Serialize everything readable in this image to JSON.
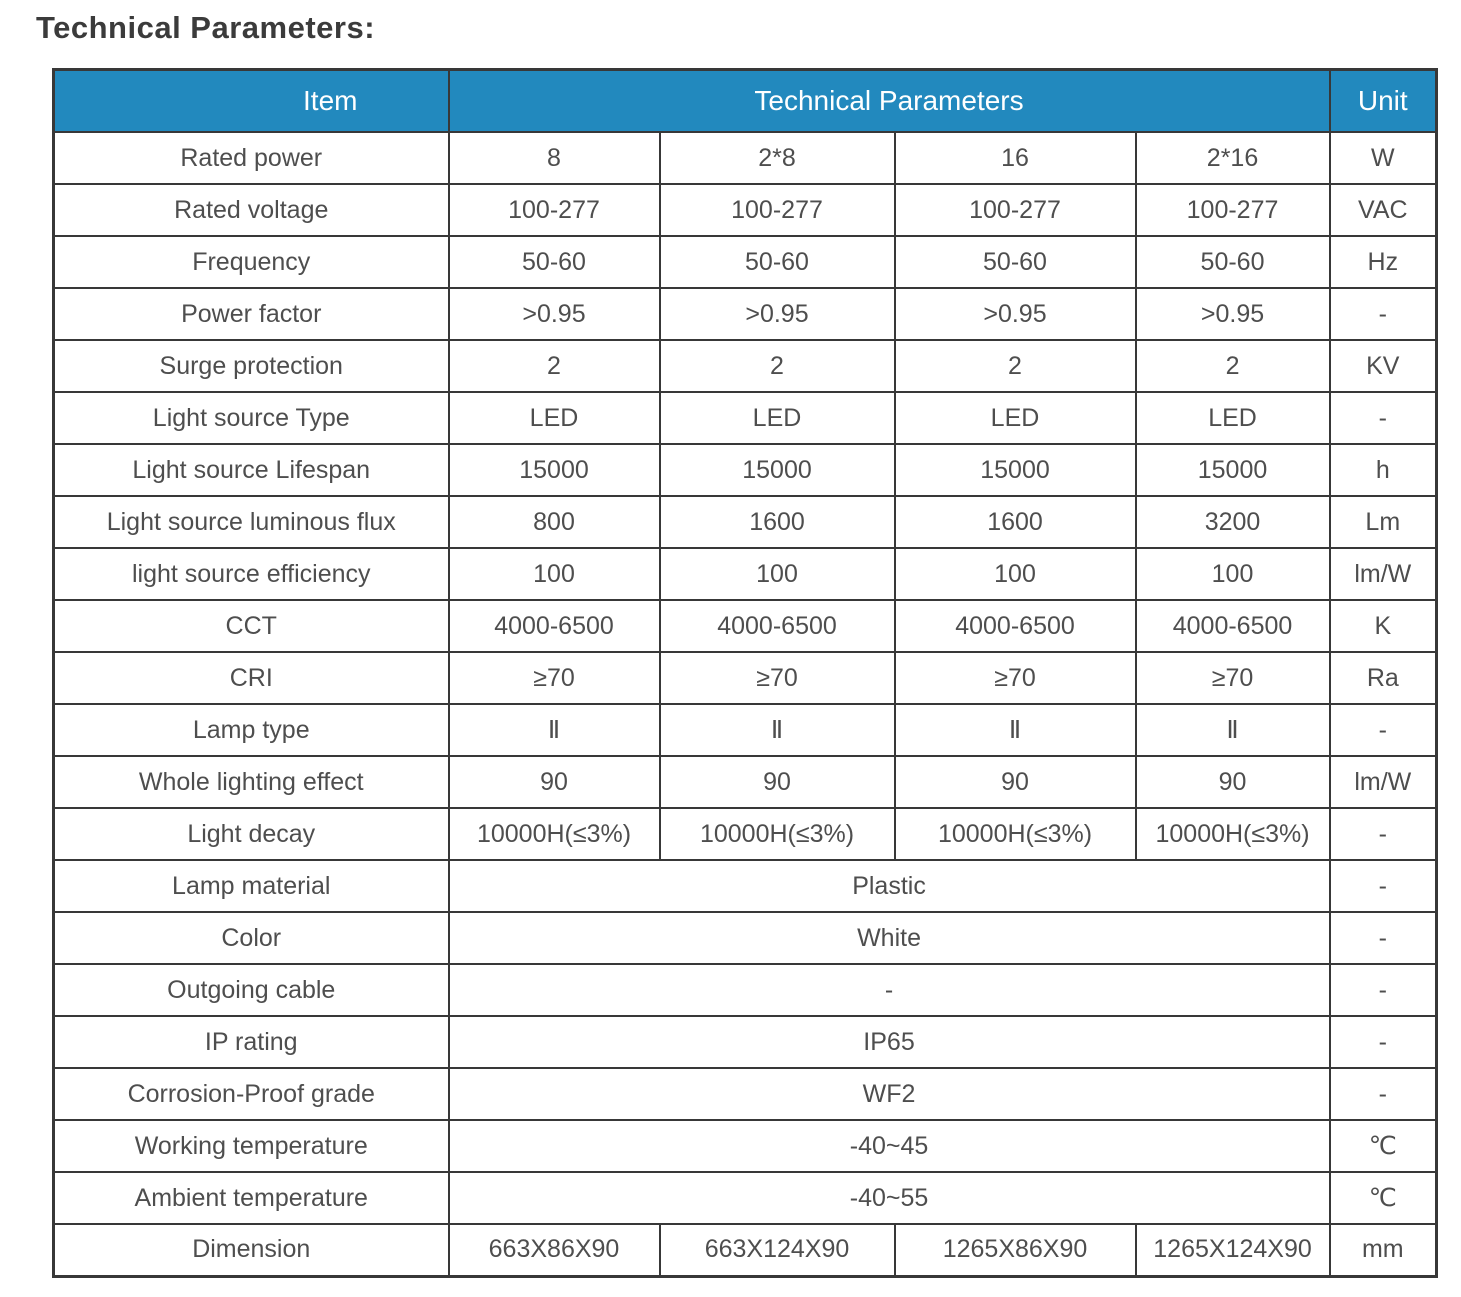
{
  "title": "Technical Parameters:",
  "colors": {
    "header_bg": "#2289be",
    "header_text": "#ffffff",
    "border": "#383838",
    "cell_text": "#4e4e4e",
    "title_text": "#3b3b3b"
  },
  "table": {
    "header": {
      "item": "Item",
      "technical_parameters": "Technical Parameters",
      "unit": "Unit"
    },
    "rows": [
      {
        "label": "Rated power",
        "values": [
          "8",
          "2*8",
          "16",
          "2*16"
        ],
        "unit": "W"
      },
      {
        "label": "Rated voltage",
        "values": [
          "100-277",
          "100-277",
          "100-277",
          "100-277"
        ],
        "unit": "VAC"
      },
      {
        "label": "Frequency",
        "values": [
          "50-60",
          "50-60",
          "50-60",
          "50-60"
        ],
        "unit": "Hz"
      },
      {
        "label": "Power factor",
        "values": [
          ">0.95",
          ">0.95",
          ">0.95",
          ">0.95"
        ],
        "unit": "-"
      },
      {
        "label": "Surge protection",
        "values": [
          "2",
          "2",
          "2",
          "2"
        ],
        "unit": "KV"
      },
      {
        "label": "Light source Type",
        "values": [
          "LED",
          "LED",
          "LED",
          "LED"
        ],
        "unit": "-"
      },
      {
        "label": "Light source Lifespan",
        "values": [
          "15000",
          "15000",
          "15000",
          "15000"
        ],
        "unit": "h"
      },
      {
        "label": "Light source luminous flux",
        "values": [
          "800",
          "1600",
          "1600",
          "3200"
        ],
        "unit": "Lm"
      },
      {
        "label": "light source efficiency",
        "values": [
          "100",
          "100",
          "100",
          "100"
        ],
        "unit": "lm/W"
      },
      {
        "label": "CCT",
        "values": [
          "4000-6500",
          "4000-6500",
          "4000-6500",
          "4000-6500"
        ],
        "unit": "K"
      },
      {
        "label": "CRI",
        "values": [
          "≥70",
          "≥70",
          "≥70",
          "≥70"
        ],
        "unit": "Ra"
      },
      {
        "label": "Lamp type",
        "values": [
          "Ⅱ",
          "Ⅱ",
          "Ⅱ",
          "Ⅱ"
        ],
        "unit": "-"
      },
      {
        "label": "Whole lighting effect",
        "values": [
          "90",
          "90",
          "90",
          "90"
        ],
        "unit": "lm/W"
      },
      {
        "label": "Light decay",
        "values": [
          "10000H(≤3%)",
          "10000H(≤3%)",
          "10000H(≤3%)",
          "10000H(≤3%)"
        ],
        "unit": "-"
      },
      {
        "label": "Lamp material",
        "merged": "Plastic",
        "unit": "-"
      },
      {
        "label": "Color",
        "merged": "White",
        "unit": "-"
      },
      {
        "label": "Outgoing cable",
        "merged": "-",
        "unit": "-"
      },
      {
        "label": "IP rating",
        "merged": "IP65",
        "unit": "-"
      },
      {
        "label": "Corrosion-Proof grade",
        "merged": "WF2",
        "unit": "-"
      },
      {
        "label": "Working temperature",
        "merged": "-40~45",
        "unit": "℃"
      },
      {
        "label": "Ambient temperature",
        "merged": "-40~55",
        "unit": "℃"
      },
      {
        "label": "Dimension",
        "values": [
          "663X86X90",
          "663X124X90",
          "1265X86X90",
          "1265X124X90"
        ],
        "unit": "mm"
      }
    ]
  }
}
